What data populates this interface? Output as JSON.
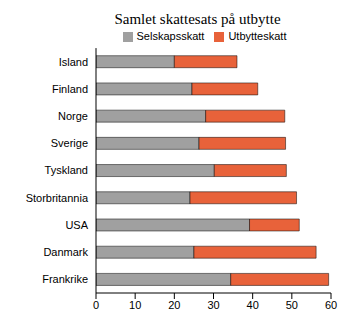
{
  "chart_data": {
    "type": "bar",
    "title": "Samlet skattesats på utbytte",
    "orientation": "horizontal",
    "stacked": true,
    "grid": false,
    "legend": "top",
    "categories": [
      "Island",
      "Finland",
      "Norge",
      "Sverige",
      "Tyskland",
      "Storbritannia",
      "USA",
      "Danmark",
      "Frankrike"
    ],
    "series": [
      {
        "name": "Selskapsskatt",
        "color": "#a0a0a0",
        "values": [
          20,
          24.5,
          28,
          26.3,
          30.2,
          24,
          39.2,
          25,
          34.4
        ]
      },
      {
        "name": "Utbytteskatt",
        "color": "#e8623a",
        "values": [
          16,
          16.8,
          20.2,
          22.1,
          18.4,
          27.2,
          12.7,
          31.2,
          25
        ]
      }
    ],
    "xlim": [
      0,
      60
    ],
    "xticks": [
      0,
      10,
      20,
      30,
      40,
      50,
      60
    ]
  }
}
